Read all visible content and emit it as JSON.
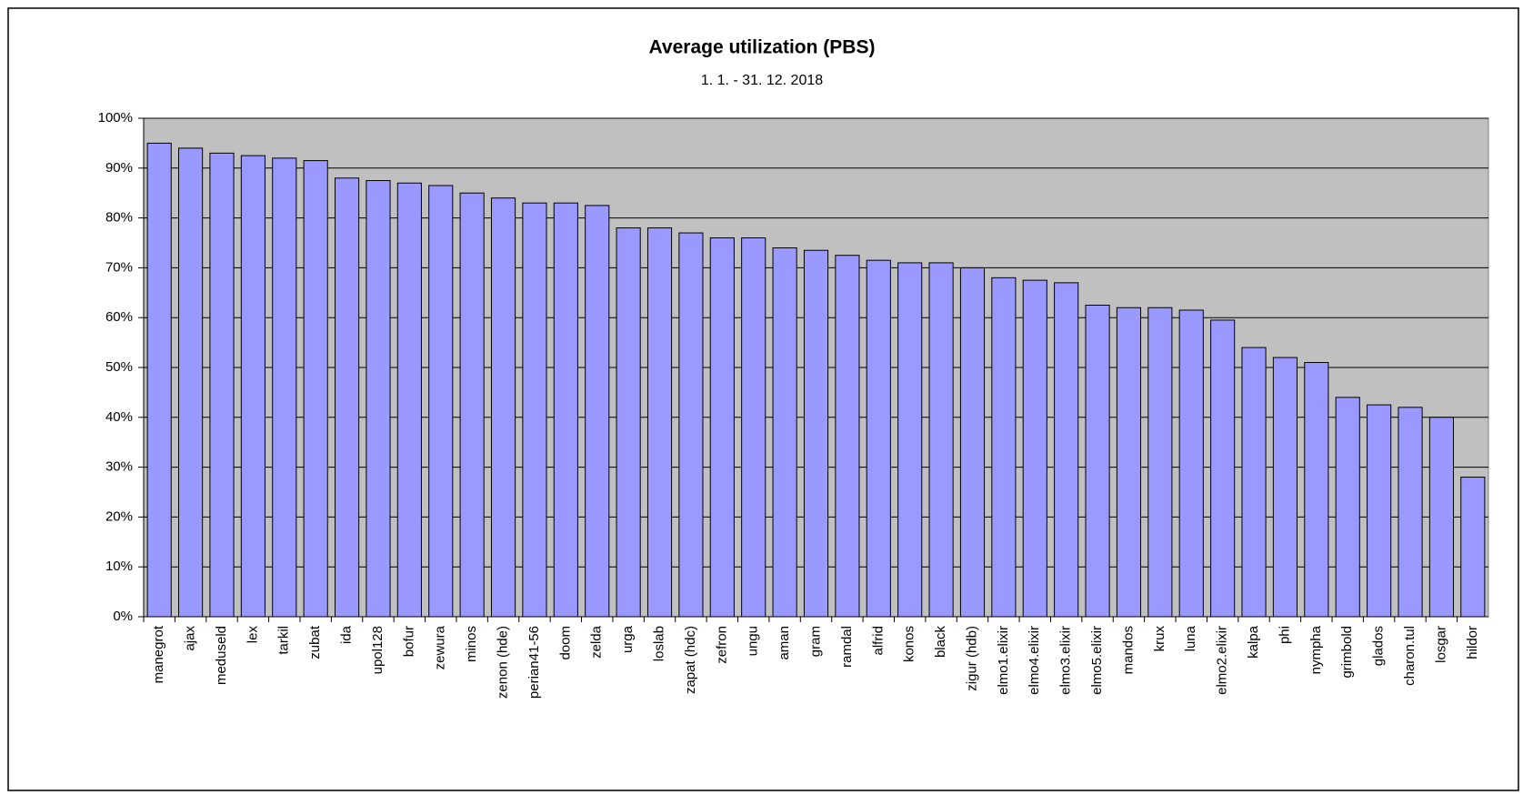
{
  "chart_data": {
    "type": "bar",
    "title": "Average utilization (PBS)",
    "subtitle": "1. 1. - 31. 12. 2018",
    "categories": [
      "manegrot",
      "ajax",
      "meduseld",
      "lex",
      "tarkil",
      "zubat",
      "ida",
      "upol128",
      "bofur",
      "zewura",
      "minos",
      "zenon (hde)",
      "perian41-56",
      "doom",
      "zelda",
      "urga",
      "loslab",
      "zapat (hdc)",
      "zefron",
      "ungu",
      "aman",
      "gram",
      "ramdal",
      "alfrid",
      "konos",
      "black",
      "zigur (hdb)",
      "elmo1.elixir",
      "elmo4.elixir",
      "elmo3.elixir",
      "elmo5.elixir",
      "mandos",
      "krux",
      "luna",
      "elmo2.elixir",
      "kalpa",
      "phi",
      "nympha",
      "grimbold",
      "glados",
      "charon.tul",
      "losgar",
      "hildor"
    ],
    "values": [
      95,
      94,
      93,
      92.5,
      92,
      91.5,
      88,
      87.5,
      87,
      86.5,
      85,
      84,
      83,
      83,
      82.5,
      78,
      78,
      77,
      76,
      76,
      74,
      73.5,
      72.5,
      71.5,
      71,
      71,
      70,
      68,
      67.5,
      67,
      62.5,
      62,
      62,
      61.5,
      59.5,
      54,
      52,
      51,
      44,
      42.5,
      42,
      40,
      28
    ],
    "color": "#9999ff",
    "plot_background": "#c0c0c0",
    "grid": true,
    "ylim": [
      0,
      100
    ],
    "yticks": [
      {
        "value": 0,
        "label": "0%"
      },
      {
        "value": 10,
        "label": "10%"
      },
      {
        "value": 20,
        "label": "20%"
      },
      {
        "value": 30,
        "label": "30%"
      },
      {
        "value": 40,
        "label": "40%"
      },
      {
        "value": 50,
        "label": "50%"
      },
      {
        "value": 60,
        "label": "60%"
      },
      {
        "value": 70,
        "label": "70%"
      },
      {
        "value": 80,
        "label": "80%"
      },
      {
        "value": 90,
        "label": "90%"
      },
      {
        "value": 100,
        "label": "100%"
      }
    ]
  }
}
